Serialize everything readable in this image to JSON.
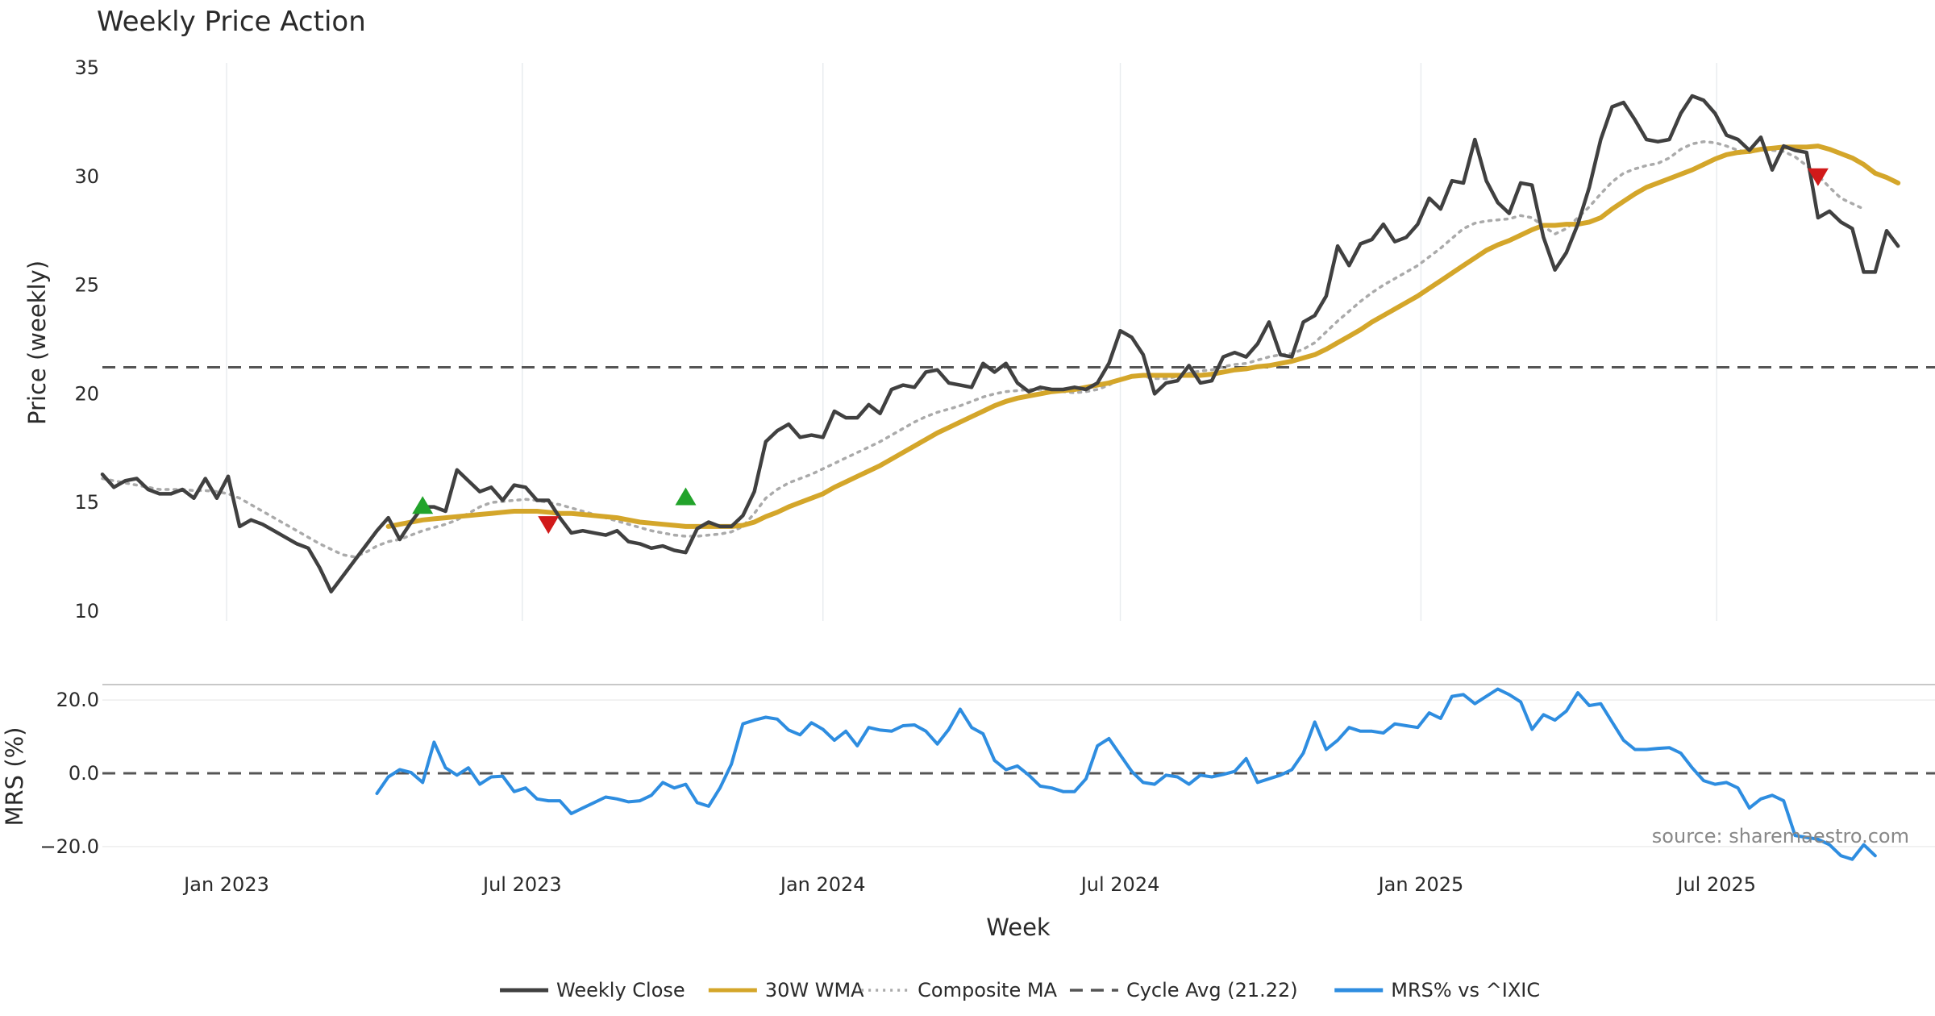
{
  "chart_data": {
    "type": "line",
    "title": "Weekly Price Action",
    "xlabel": "Week",
    "annotation": "source: sharemaestro.com",
    "x_ticks": [
      "Jan 2023",
      "Jul 2023",
      "Jan 2024",
      "Jul 2024",
      "Jan 2025",
      "Jul 2025"
    ],
    "weeks": {
      "start": "2022-10-17",
      "count": 157
    },
    "price_panel": {
      "ylabel": "Price (weekly)",
      "ylim": [
        10,
        35
      ],
      "yticks": [
        10,
        15,
        20,
        25,
        30,
        35
      ],
      "cycle_avg": 21.22,
      "series": [
        {
          "name": "Weekly Close",
          "color": "#404040",
          "style": "solid",
          "values": [
            16.3,
            15.7,
            16.0,
            16.1,
            15.6,
            15.4,
            15.4,
            15.6,
            15.2,
            16.1,
            15.2,
            16.2,
            13.9,
            14.2,
            14.0,
            13.7,
            13.4,
            13.1,
            12.9,
            12.0,
            10.9,
            11.6,
            12.3,
            13.0,
            13.7,
            14.3,
            13.3,
            14.1,
            14.8,
            14.8,
            14.6,
            16.5,
            16.0,
            15.5,
            15.7,
            15.1,
            15.8,
            15.7,
            15.1,
            15.1,
            14.3,
            13.6,
            13.7,
            13.6,
            13.5,
            13.7,
            13.2,
            13.1,
            12.9,
            13.0,
            12.8,
            12.7,
            13.8,
            14.1,
            13.9,
            13.9,
            14.4,
            15.5,
            17.8,
            18.3,
            18.6,
            18.0,
            18.1,
            18.0,
            19.2,
            18.9,
            18.9,
            19.5,
            19.1,
            20.2,
            20.4,
            20.3,
            21.0,
            21.1,
            20.5,
            20.4,
            20.3,
            21.4,
            21.0,
            21.4,
            20.5,
            20.1,
            20.3,
            20.2,
            20.2,
            20.3,
            20.2,
            20.5,
            21.4,
            22.9,
            22.6,
            21.8,
            20.0,
            20.5,
            20.6,
            21.3,
            20.5,
            20.6,
            21.7,
            21.9,
            21.7,
            22.3,
            23.3,
            21.8,
            21.7,
            23.3,
            23.6,
            24.5,
            26.8,
            25.9,
            26.9,
            27.1,
            27.8,
            27.0,
            27.2,
            27.8,
            29.0,
            28.5,
            29.8,
            29.7,
            31.7,
            29.8,
            28.8,
            28.3,
            29.7,
            29.6,
            27.2,
            25.7,
            26.5,
            27.8,
            29.5,
            31.7,
            33.2,
            33.4,
            32.6,
            31.7,
            31.6,
            31.7,
            32.9,
            33.7,
            33.5,
            32.9,
            31.9,
            31.7,
            31.2,
            31.8,
            30.3,
            31.4,
            31.2,
            31.1,
            28.1,
            28.4,
            27.9,
            27.6,
            25.6,
            25.6,
            27.5,
            26.8
          ]
        },
        {
          "name": "30W WMA",
          "color": "#d4a62a",
          "style": "solid",
          "start_index": 25,
          "values": [
            13.9,
            14.0,
            14.1,
            14.2,
            14.25,
            14.3,
            14.35,
            14.4,
            14.45,
            14.5,
            14.55,
            14.6,
            14.6,
            14.6,
            14.55,
            14.5,
            14.5,
            14.45,
            14.4,
            14.35,
            14.3,
            14.2,
            14.1,
            14.05,
            14.0,
            13.95,
            13.9,
            13.9,
            13.9,
            13.9,
            13.9,
            13.95,
            14.1,
            14.35,
            14.55,
            14.8,
            15.0,
            15.2,
            15.4,
            15.7,
            15.95,
            16.2,
            16.45,
            16.7,
            17.0,
            17.3,
            17.6,
            17.9,
            18.2,
            18.45,
            18.7,
            18.95,
            19.2,
            19.45,
            19.65,
            19.8,
            19.9,
            20.0,
            20.1,
            20.15,
            20.2,
            20.3,
            20.4,
            20.5,
            20.65,
            20.8,
            20.85,
            20.85,
            20.85,
            20.85,
            20.85,
            20.85,
            20.9,
            21.0,
            21.1,
            21.15,
            21.25,
            21.3,
            21.4,
            21.5,
            21.65,
            21.8,
            22.05,
            22.35,
            22.65,
            22.95,
            23.3,
            23.6,
            23.9,
            24.2,
            24.5,
            24.85,
            25.2,
            25.55,
            25.9,
            26.25,
            26.6,
            26.85,
            27.05,
            27.3,
            27.55,
            27.75,
            27.75,
            27.8,
            27.8,
            27.9,
            28.1,
            28.5,
            28.85,
            29.2,
            29.5,
            29.7,
            29.9,
            30.1,
            30.3,
            30.55,
            30.8,
            31.0,
            31.1,
            31.15,
            31.25,
            31.3,
            31.35,
            31.35,
            31.35,
            31.4,
            31.25,
            31.05,
            30.85,
            30.55,
            30.15,
            29.95,
            29.7
          ]
        },
        {
          "name": "Composite MA",
          "color": "#aaaaaa",
          "style": "dotted",
          "values": [
            16.1,
            16.0,
            15.9,
            15.8,
            15.7,
            15.6,
            15.6,
            15.6,
            15.55,
            15.55,
            15.5,
            15.4,
            15.2,
            14.9,
            14.6,
            14.3,
            14.0,
            13.7,
            13.4,
            13.1,
            12.85,
            12.6,
            12.5,
            12.7,
            13.0,
            13.2,
            13.3,
            13.5,
            13.7,
            13.85,
            14.0,
            14.2,
            14.5,
            14.8,
            15.0,
            15.05,
            15.1,
            15.15,
            15.1,
            15.0,
            14.9,
            14.75,
            14.6,
            14.45,
            14.3,
            14.15,
            14.0,
            13.85,
            13.7,
            13.6,
            13.5,
            13.45,
            13.45,
            13.5,
            13.55,
            13.65,
            13.9,
            14.5,
            15.2,
            15.6,
            15.9,
            16.1,
            16.3,
            16.55,
            16.8,
            17.05,
            17.3,
            17.55,
            17.8,
            18.1,
            18.4,
            18.7,
            18.95,
            19.15,
            19.3,
            19.45,
            19.65,
            19.85,
            20.0,
            20.1,
            20.15,
            20.2,
            20.2,
            20.15,
            20.1,
            20.05,
            20.1,
            20.2,
            20.4,
            20.7,
            20.8,
            20.8,
            20.7,
            20.7,
            20.8,
            20.95,
            21.05,
            21.1,
            21.25,
            21.35,
            21.4,
            21.55,
            21.7,
            21.8,
            21.85,
            22.05,
            22.35,
            22.85,
            23.35,
            23.8,
            24.25,
            24.65,
            25.0,
            25.3,
            25.6,
            25.9,
            26.3,
            26.7,
            27.15,
            27.6,
            27.85,
            27.95,
            28.0,
            28.05,
            28.2,
            28.1,
            27.7,
            27.35,
            27.6,
            28.1,
            28.6,
            29.2,
            29.75,
            30.15,
            30.35,
            30.5,
            30.6,
            30.85,
            31.25,
            31.5,
            31.6,
            31.55,
            31.4,
            31.2,
            31.1,
            31.2,
            31.2,
            31.15,
            30.9,
            30.5,
            30.05,
            29.5,
            29.0,
            28.75,
            28.5
          ]
        }
      ],
      "signals": [
        {
          "type": "buy",
          "index": 28,
          "value": 14.85,
          "color": "#22a32b"
        },
        {
          "type": "sell",
          "index": 39,
          "value": 14.0,
          "color": "#d11a1a"
        },
        {
          "type": "buy",
          "index": 51,
          "value": 15.25,
          "color": "#22a32b"
        },
        {
          "type": "sell",
          "index": 150,
          "value": 30.0,
          "color": "#d11a1a"
        }
      ]
    },
    "mrs_panel": {
      "ylabel": "MRS (%)",
      "ylim": [
        -24,
        24
      ],
      "yticks": [
        20.0,
        0.0,
        -20.0
      ],
      "ytick_labels": [
        "20.0",
        "0.0",
        "−20.0"
      ],
      "zero_line": 0,
      "series": [
        {
          "name": "MRS% vs ^IXIC",
          "color": "#2e8de0",
          "style": "solid",
          "start_index": 24,
          "values": [
            -5.5,
            -1.0,
            1.0,
            0.2,
            -2.5,
            8.5,
            1.5,
            -0.5,
            1.5,
            -3.0,
            -1.0,
            -0.8,
            -5.0,
            -4.0,
            -7.0,
            -7.5,
            -7.5,
            -11.0,
            -9.5,
            -8.0,
            -6.5,
            -7.0,
            -7.8,
            -7.5,
            -6.0,
            -2.5,
            -4.0,
            -3.0,
            -8.0,
            -9.0,
            -4.0,
            2.5,
            13.5,
            14.5,
            15.3,
            14.8,
            11.8,
            10.5,
            13.8,
            12.0,
            9.0,
            11.5,
            7.5,
            12.5,
            11.8,
            11.5,
            13.0,
            13.2,
            11.5,
            8.0,
            12.0,
            17.5,
            12.5,
            10.8,
            3.5,
            1.0,
            2.0,
            -0.5,
            -3.5,
            -4.0,
            -5.0,
            -5.0,
            -1.5,
            7.5,
            9.5,
            5.0,
            0.5,
            -2.5,
            -3.0,
            -0.5,
            -1.0,
            -3.0,
            -0.5,
            -1.0,
            -0.3,
            0.5,
            4.0,
            -2.5,
            -1.5,
            -0.5,
            1.0,
            5.5,
            14.0,
            6.5,
            9.0,
            12.5,
            11.5,
            11.5,
            11.0,
            13.5,
            13.0,
            12.5,
            16.5,
            15.0,
            21.0,
            21.5,
            19.0,
            21.0,
            23.0,
            21.5,
            19.5,
            12.0,
            16.0,
            14.5,
            17.0,
            22.0,
            18.5,
            19.0,
            14.0,
            9.0,
            6.5,
            6.5,
            6.8,
            7.0,
            5.5,
            1.5,
            -2.0,
            -3.0,
            -2.5,
            -4.0,
            -9.5,
            -7.0,
            -6.0,
            -7.5,
            -17.0,
            -17.5,
            -18.0,
            -19.5,
            -22.5,
            -23.5,
            -19.5,
            -22.5
          ]
        }
      ]
    },
    "legend": [
      {
        "label": "Weekly Close",
        "color": "#404040",
        "style": "solid"
      },
      {
        "label": "30W WMA",
        "color": "#d4a62a",
        "style": "solid"
      },
      {
        "label": "Composite MA",
        "color": "#aaaaaa",
        "style": "dotted"
      },
      {
        "label": "Cycle Avg (21.22)",
        "color": "#555555",
        "style": "dashed"
      },
      {
        "label": "MRS% vs ^IXIC",
        "color": "#2e8de0",
        "style": "solid"
      }
    ]
  }
}
